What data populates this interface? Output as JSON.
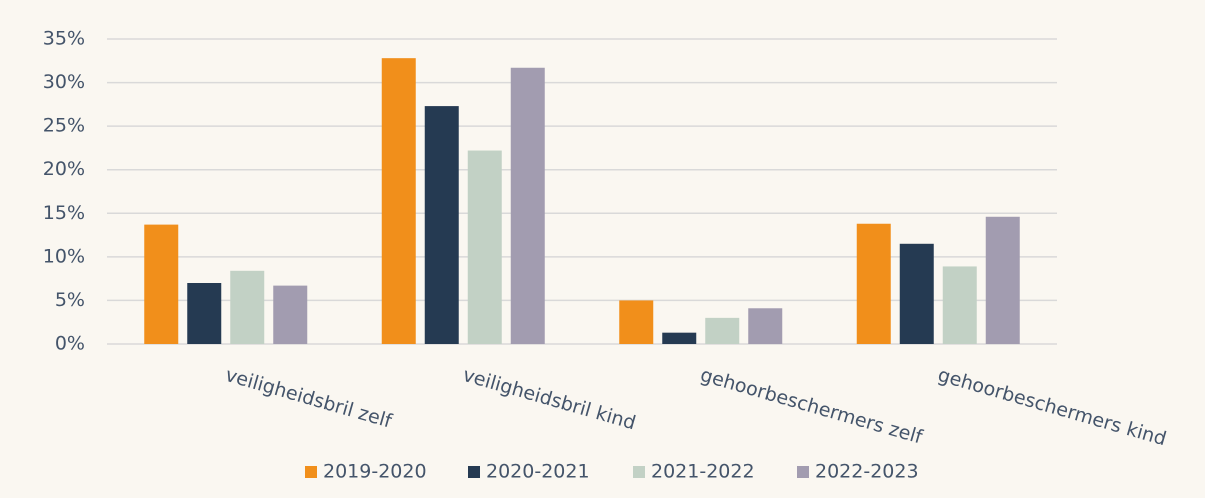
{
  "chart_data": {
    "type": "bar",
    "categories": [
      "veiligheidsbril zelf",
      "veiligheidsbril kind",
      "gehoorbeschermers zelf",
      "gehoorbeschermers kind"
    ],
    "series": [
      {
        "name": "2019-2020",
        "color": "#f18f1b",
        "values": [
          13.7,
          32.8,
          5.0,
          13.8
        ]
      },
      {
        "name": "2020-2021",
        "color": "#253a52",
        "values": [
          7.0,
          27.3,
          1.3,
          11.5
        ]
      },
      {
        "name": "2021-2022",
        "color": "#c2d1c5",
        "values": [
          8.4,
          22.2,
          3.0,
          8.9
        ]
      },
      {
        "name": "2022-2023",
        "color": "#a29cb0",
        "values": [
          6.7,
          31.7,
          4.1,
          14.6
        ]
      }
    ],
    "ylim": [
      0,
      35
    ],
    "yticks": [
      {
        "value": 0,
        "label": "0%"
      },
      {
        "value": 5,
        "label": "5%"
      },
      {
        "value": 10,
        "label": "10%"
      },
      {
        "value": 15,
        "label": "15%"
      },
      {
        "value": 20,
        "label": "20%"
      },
      {
        "value": 25,
        "label": "25%"
      },
      {
        "value": 30,
        "label": "30%"
      },
      {
        "value": 35,
        "label": "35%"
      }
    ],
    "grid": true,
    "legend": "bottom"
  }
}
